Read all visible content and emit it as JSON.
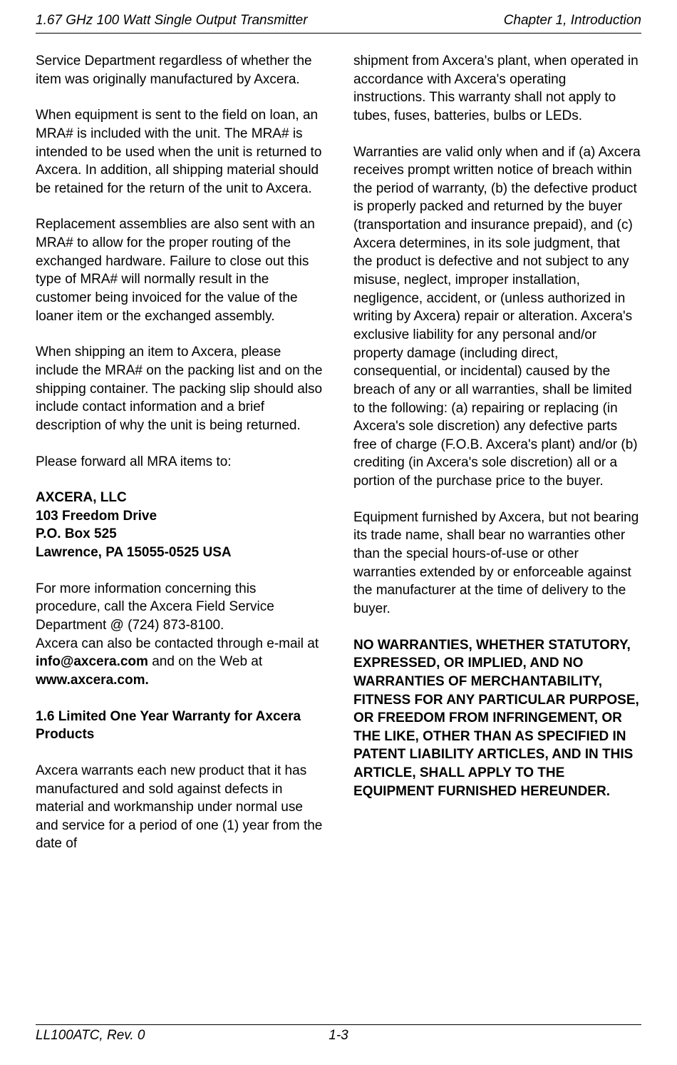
{
  "header": {
    "left": "1.67 GHz 100 Watt Single Output Transmitter",
    "right": "Chapter 1, Introduction"
  },
  "left_col": {
    "p1": "Service Department regardless of whether the item was originally manufactured by Axcera.",
    "p2": "When equipment is sent to the field on loan, an MRA# is included with the unit. The MRA# is intended to be used when the unit is returned to Axcera.  In addition, all shipping material should be retained for the return of the unit to Axcera.",
    "p3": "Replacement assemblies are also sent with an MRA# to allow for the proper routing of the exchanged hardware. Failure to close out this type of MRA# will normally result in the customer being invoiced for the value of the loaner item or the exchanged assembly.",
    "p4": "When shipping an item to Axcera, please include the MRA# on the packing list and on the shipping container.  The packing slip should also include contact information and a brief description of why the unit is being returned.",
    "p5": "Please forward all MRA items to:",
    "addr1": "AXCERA, LLC",
    "addr2": "103 Freedom Drive",
    "addr3": "P.O. Box 525",
    "addr4": "Lawrence, PA 15055-0525  USA",
    "p6a": "For more information concerning this procedure, call the Axcera Field Service Department @ (724) 873-8100.",
    "p6b_pre": "Axcera can also be contacted through e-mail at ",
    "p6b_bold1": "info@axcera.com",
    "p6b_mid": " and on the Web at ",
    "p6b_bold2": "www.axcera.com.",
    "h1": "1.6 Limited One Year Warranty for Axcera Products",
    "p7": "Axcera warrants each new product that it has manufactured and sold against defects in material and workmanship under normal use and service for a period of one (1) year from the date of"
  },
  "right_col": {
    "p1": "shipment from Axcera's plant, when operated in accordance with Axcera's operating instructions.  This warranty shall not apply to tubes, fuses, batteries, bulbs or LEDs.",
    "p2": "Warranties are valid only when and if (a) Axcera receives prompt written notice of breach within the period of warranty, (b) the defective product is properly packed and returned by the buyer (transportation and insurance prepaid), and (c) Axcera determines, in its sole judgment, that the product is defective and not subject to any misuse, neglect, improper installation, negligence, accident, or (unless authorized in writing by Axcera) repair or alteration.  Axcera's exclusive liability for any personal and/or property damage (including direct, consequential, or incidental) caused by the breach of any or all warranties, shall be limited to the following: (a) repairing or replacing (in Axcera's sole discretion) any defective parts free of charge (F.O.B. Axcera's plant) and/or (b) crediting (in Axcera's sole discretion) all or a portion of the purchase price to the buyer.",
    "p3": "Equipment furnished by Axcera, but not bearing its trade name, shall bear no warranties other than the special hours-of-use or other warranties extended by or enforceable against the manufacturer at the time of delivery to the buyer.",
    "p4": "NO WARRANTIES, WHETHER STATUTORY, EXPRESSED, OR IMPLIED, AND NO WARRANTIES OF MERCHANTABILITY, FITNESS FOR ANY PARTICULAR PURPOSE, OR FREEDOM FROM INFRINGEMENT, OR THE LIKE, OTHER THAN AS SPECIFIED IN PATENT LIABILITY ARTICLES, AND IN THIS ARTICLE, SHALL APPLY TO THE EQUIPMENT FURNISHED HEREUNDER."
  },
  "footer": {
    "left": "LL100ATC, Rev. 0",
    "center": "1-3"
  }
}
